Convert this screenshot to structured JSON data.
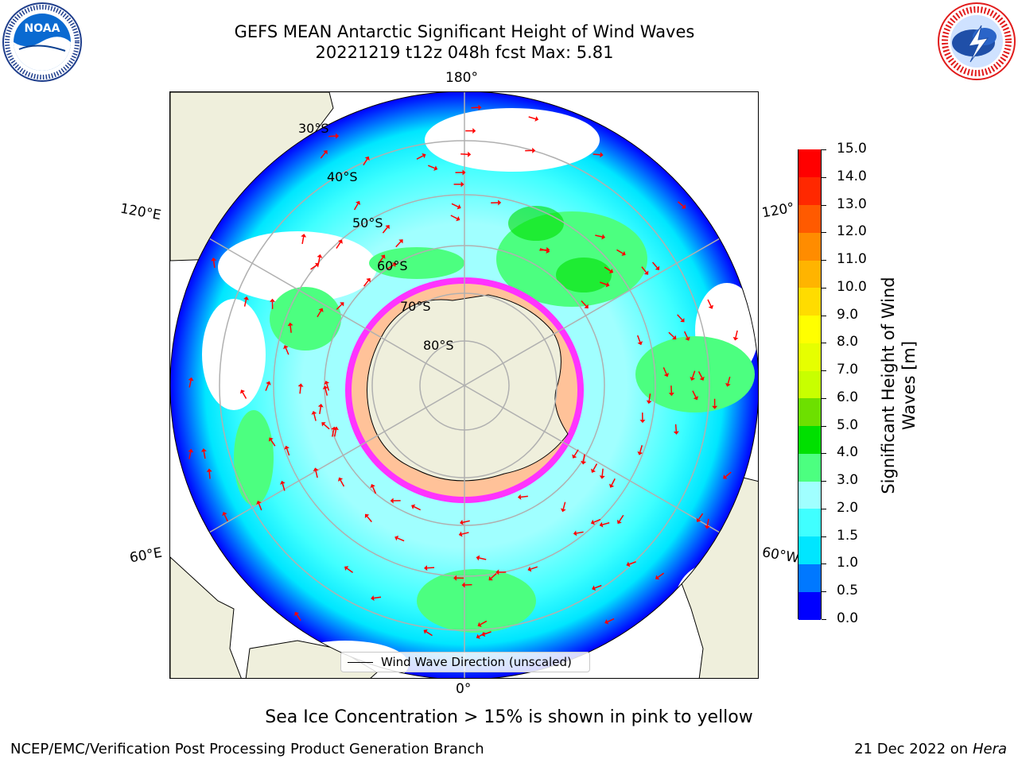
{
  "header": {
    "title_line1": "GEFS MEAN Antarctic Significant Height of Wind Waves",
    "title_line2": "20221219 t12z 048h fcst   Max: 5.81"
  },
  "logos": {
    "noaa": {
      "text": "NOAA",
      "ring_text": "NATIONAL OCEANIC AND ATMOSPHERIC ADMINISTRATION · U.S. DEPARTMENT OF COMMERCE"
    },
    "nws": {
      "ring_text": "NATIONAL WEATHER SERVICE"
    }
  },
  "map": {
    "projection": "south-polar-stereographic",
    "longitude_labels": {
      "top": "180°",
      "bottom": "0°",
      "upper_left": "120°E",
      "upper_right": "120°",
      "lower_left": "60°E",
      "lower_right": "60°W"
    },
    "latitude_labels": [
      "30°S",
      "40°S",
      "50°S",
      "60°S",
      "70°S",
      "80°S"
    ],
    "legend_label": "Wind Wave Direction (unscaled)",
    "colors": {
      "land": "#efefdc",
      "sea_ice_low": "#ff33ff",
      "sea_ice_high": "#ffff66",
      "arrows": "#ff0000",
      "graticule": "#b0b0b0"
    }
  },
  "colorbar": {
    "title": "Significant Height of Wind Waves [m]",
    "tick_labels": [
      "0.0",
      "0.5",
      "1.0",
      "1.5",
      "2.0",
      "3.0",
      "4.0",
      "5.0",
      "6.0",
      "7.0",
      "8.0",
      "9.0",
      "10.0",
      "11.0",
      "12.0",
      "13.0",
      "14.0",
      "15.0"
    ],
    "colors": [
      "#0000ff",
      "#0078ff",
      "#00e6ff",
      "#40ffff",
      "#a0ffff",
      "#4cff80",
      "#00e000",
      "#6de000",
      "#c8ff00",
      "#e6ff00",
      "#ffff00",
      "#ffdc00",
      "#ffb400",
      "#ff8c00",
      "#ff5a00",
      "#ff2800",
      "#ff0000"
    ]
  },
  "caption": "Sea Ice Concentration > 15% is shown in pink to yellow",
  "footer": {
    "left": "NCEP/EMC/Verification Post Processing Product Generation Branch",
    "right_date": "21 Dec 2022 on",
    "right_host": "Hera"
  }
}
